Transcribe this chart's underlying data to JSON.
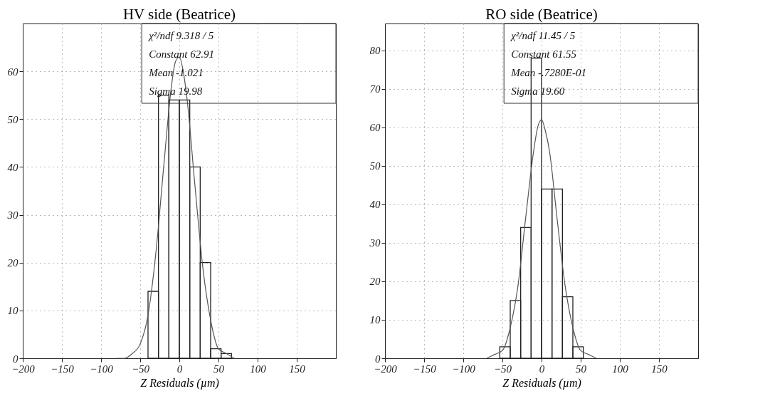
{
  "chart_data": [
    {
      "type": "histogram",
      "title": "HV side (Beatrice)",
      "xlabel": "Z Residuals (µm)",
      "xlim": [
        -200,
        200
      ],
      "xticks": [
        -200,
        -150,
        -100,
        -50,
        0,
        50,
        100,
        150
      ],
      "ylim": [
        0,
        70
      ],
      "yticks": [
        0,
        10,
        20,
        30,
        40,
        50,
        60
      ],
      "grid": true,
      "color": "#222222",
      "bins": [
        -40,
        -26.67,
        -13.33,
        0,
        13.33,
        26.67,
        40,
        53.33,
        66.67
      ],
      "values": [
        14,
        55,
        54,
        54,
        40,
        20,
        2,
        1
      ],
      "series": [
        {
          "type": "line",
          "color": "#555555",
          "x": [
            -80,
            -70,
            -60,
            -50,
            -40,
            -30,
            -20,
            -10,
            -5,
            0,
            5,
            10,
            20,
            30,
            40,
            50,
            60,
            70
          ],
          "values": [
            0,
            0,
            1,
            3,
            9,
            22,
            40,
            57,
            62,
            63,
            60,
            54,
            36,
            19,
            8,
            2,
            1,
            0
          ]
        }
      ],
      "annotations": [
        "χ²/ndf 9.318 / 5",
        "Constant 62.91",
        "Mean -1.021",
        "Sigma 19.98"
      ]
    },
    {
      "type": "histogram",
      "title": "RO side (Beatrice)",
      "xlabel": "Z Residuals (µm)",
      "xlim": [
        -200,
        200
      ],
      "xticks": [
        -200,
        -150,
        -100,
        -50,
        0,
        50,
        100,
        150
      ],
      "ylim": [
        0,
        87
      ],
      "yticks": [
        0,
        10,
        20,
        30,
        40,
        50,
        60,
        70,
        80
      ],
      "grid": true,
      "color": "#222222",
      "bins": [
        -53.33,
        -40,
        -26.67,
        -13.33,
        0,
        13.33,
        26.67,
        40,
        53.33
      ],
      "values": [
        3,
        15,
        34,
        78,
        44,
        44,
        16,
        3
      ],
      "series": [
        {
          "type": "line",
          "color": "#555555",
          "x": [
            -70,
            -60,
            -50,
            -40,
            -30,
            -20,
            -10,
            -5,
            0,
            5,
            10,
            20,
            30,
            40,
            50,
            60,
            70
          ],
          "values": [
            0,
            1,
            2,
            8,
            19,
            37,
            54,
            60,
            62,
            59,
            54,
            36,
            19,
            8,
            2,
            1,
            0
          ]
        }
      ],
      "annotations": [
        "χ²/ndf 11.45 / 5",
        "Constant 61.55",
        "Mean -.7280E-01",
        "Sigma 19.60"
      ]
    }
  ]
}
